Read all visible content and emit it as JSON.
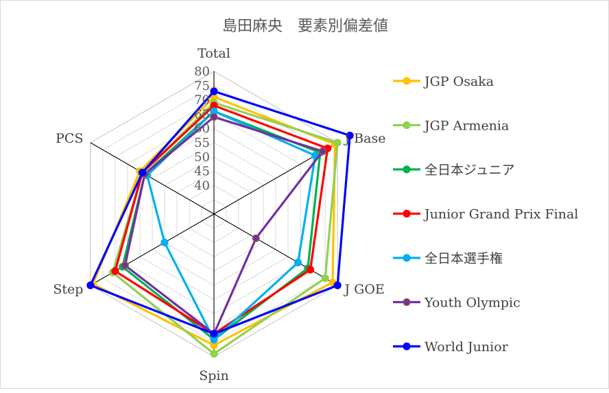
{
  "chart_data": {
    "type": "radar",
    "title": "島田麻央　要素別偏差値",
    "axes": [
      "Total",
      "J Base",
      "J GOE",
      "Spin",
      "Step",
      "PCS"
    ],
    "rlim": [
      30,
      80
    ],
    "ticks": [
      40,
      45,
      50,
      55,
      60,
      65,
      70,
      75,
      80
    ],
    "series": [
      {
        "name": "JGP Osaka",
        "color": "#FFC000",
        "values": [
          71,
          79,
          78,
          76,
          79,
          60
        ]
      },
      {
        "name": "JGP Armenia",
        "color": "#92D050",
        "values": [
          69,
          80,
          75,
          79,
          71,
          59
        ]
      },
      {
        "name": "全日本ジュニア",
        "color": "#00B050",
        "values": [
          66,
          73,
          68,
          74,
          67,
          58
        ]
      },
      {
        "name": "Junior Grand Prix Final",
        "color": "#FF0000",
        "values": [
          68,
          76,
          69,
          72,
          70,
          59
        ]
      },
      {
        "name": "全日本選手権",
        "color": "#00B0F0",
        "values": [
          66,
          71,
          64,
          74,
          50,
          57
        ]
      },
      {
        "name": "Youth Olympic",
        "color": "#7030A0",
        "values": [
          64,
          74,
          47,
          72,
          66,
          58
        ]
      },
      {
        "name": "World Junior",
        "color": "#0000FF",
        "values": [
          73,
          85,
          80,
          72,
          80,
          59
        ]
      }
    ],
    "legend_position": "right",
    "grid": true
  }
}
